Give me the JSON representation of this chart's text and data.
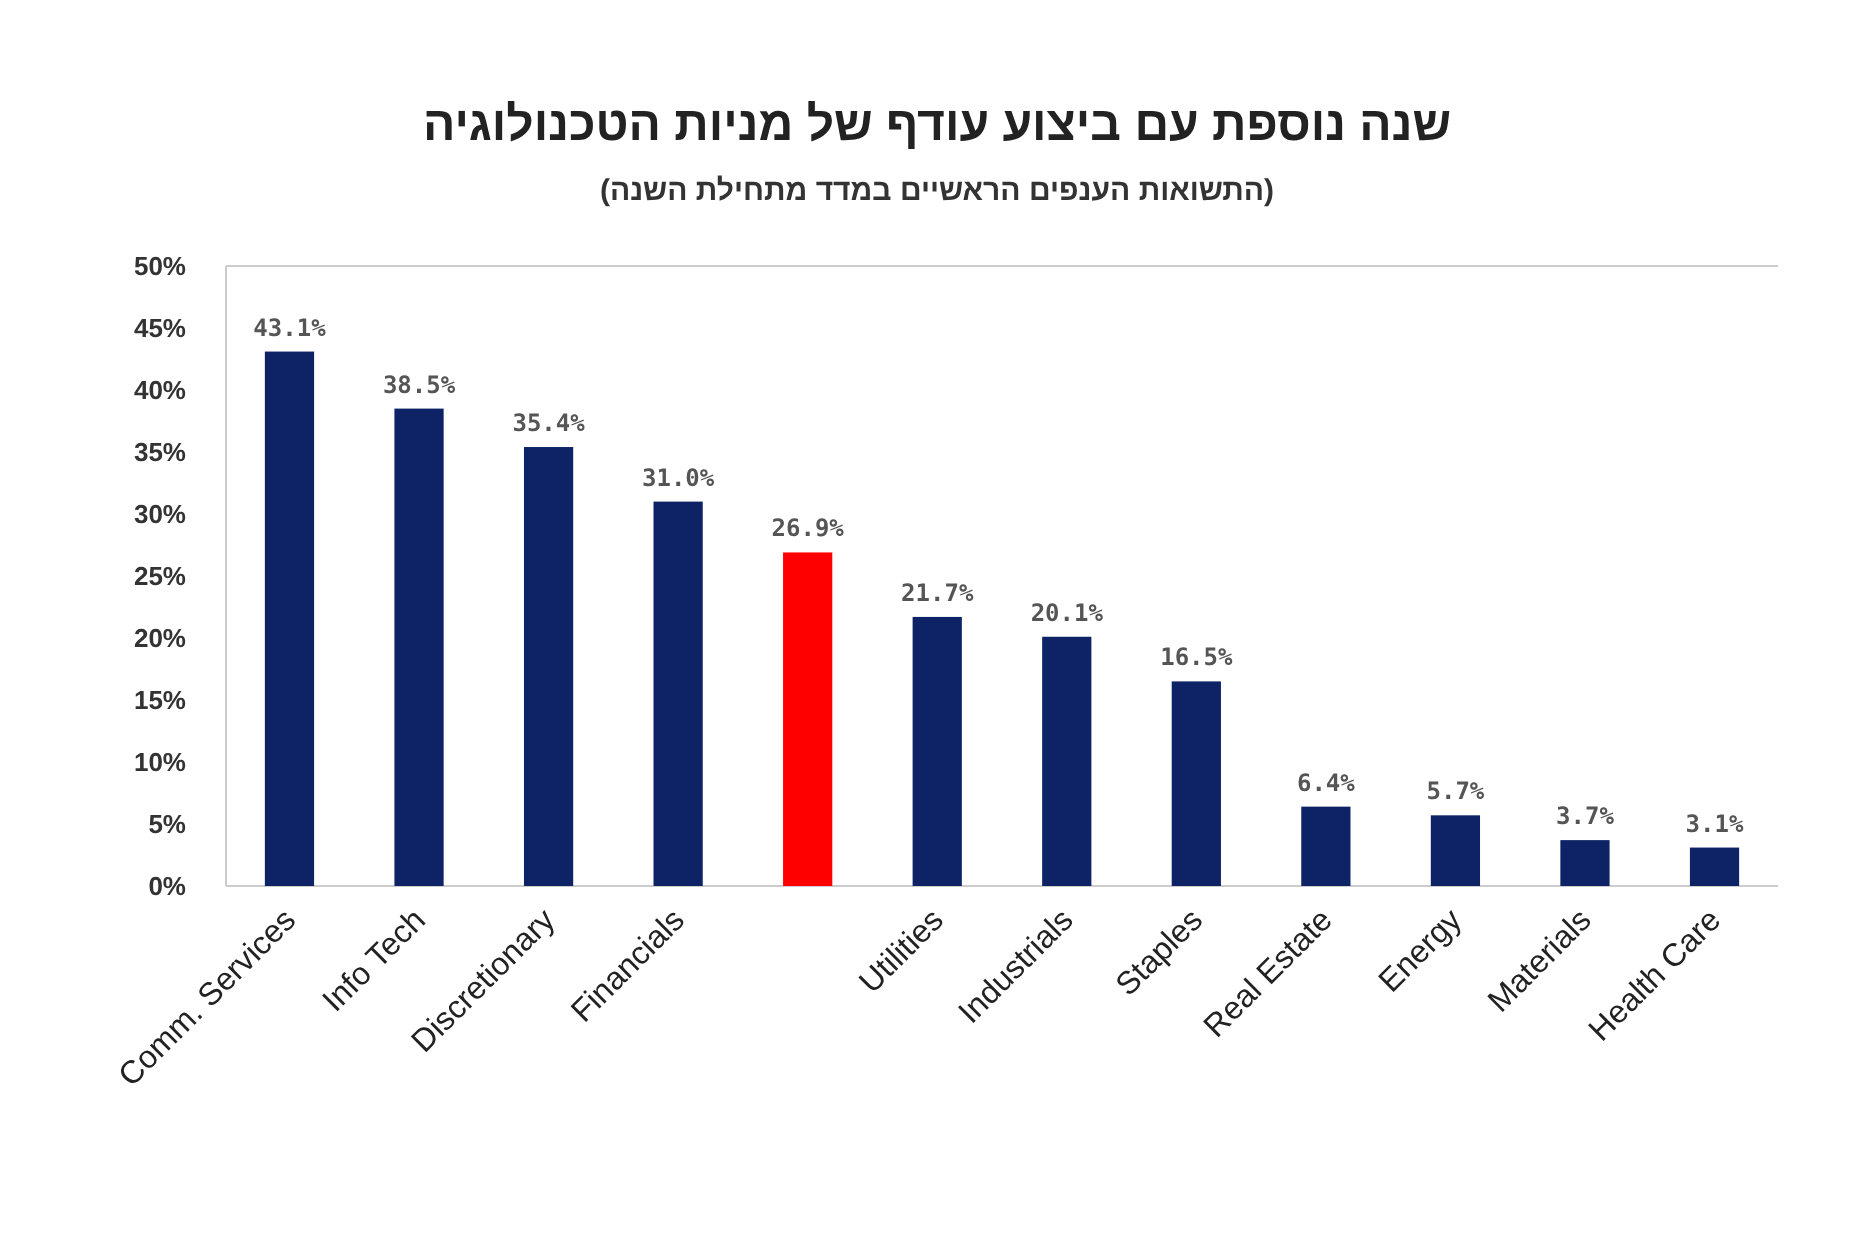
{
  "chart_data": {
    "type": "bar",
    "title": "שנה נוספת עם ביצוע עודף של מניות הטכנולוגיה",
    "subtitle": "(התשואות הענפים הראשיים במדד מתחילת השנה)",
    "categories": [
      "Comm. Services",
      "Info Tech",
      "Discretionary",
      "Financials",
      null,
      "Utilities",
      "Industrials",
      "Staples",
      "Real Estate",
      "Energy",
      "Materials",
      "Health Care"
    ],
    "values": [
      43.1,
      38.5,
      35.4,
      31.0,
      26.9,
      21.7,
      20.1,
      16.5,
      6.4,
      5.7,
      3.7,
      3.1
    ],
    "colors": [
      "#0d2366",
      "#0d2366",
      "#0d2366",
      "#0d2366",
      "#ff0000",
      "#0d2366",
      "#0d2366",
      "#0d2366",
      "#0d2366",
      "#0d2366",
      "#0d2366",
      "#0d2366"
    ],
    "value_labels": [
      "43.1%",
      "38.5%",
      "35.4%",
      "31.0%",
      "26.9%",
      "21.7%",
      "20.1%",
      "16.5%",
      "6.4%",
      "5.7%",
      "3.7%",
      "3.1%"
    ],
    "ylim": [
      0,
      50
    ],
    "yticks": [
      {
        "value": 0,
        "label": "0%"
      },
      {
        "value": 5,
        "label": "5%"
      },
      {
        "value": 10,
        "label": "10%"
      },
      {
        "value": 15,
        "label": "15%"
      },
      {
        "value": 20,
        "label": "20%"
      },
      {
        "value": 25,
        "label": "25%"
      },
      {
        "value": 30,
        "label": "30%"
      },
      {
        "value": 35,
        "label": "35%"
      },
      {
        "value": 40,
        "label": "40%"
      },
      {
        "value": 45,
        "label": "45%"
      },
      {
        "value": 50,
        "label": "50%"
      }
    ]
  }
}
